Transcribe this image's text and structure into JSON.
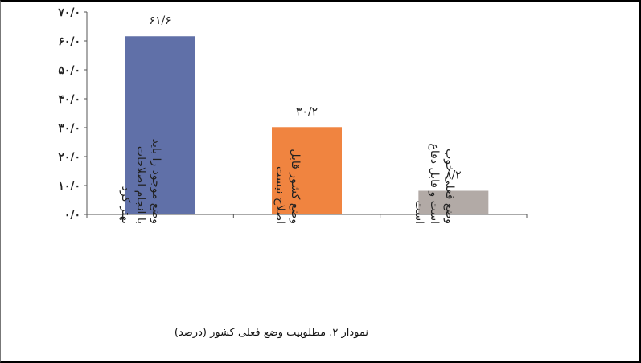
{
  "chart_data": {
    "type": "bar",
    "title": "",
    "xlabel": "",
    "ylabel": "",
    "ylim": [
      0,
      70
    ],
    "yticks": [
      0,
      10,
      20,
      30,
      40,
      50,
      60,
      70
    ],
    "ytick_labels": [
      "۰/۰",
      "۱۰/۰",
      "۲۰/۰",
      "۳۰/۰",
      "۴۰/۰",
      "۵۰/۰",
      "۶۰/۰",
      "۷۰/۰"
    ],
    "categories": [
      [
        "وضع موجود را باید",
        "با انجام اصلاحات",
        "بهتر کرد"
      ],
      [
        "وضع کشور قابل",
        "اصلاح نیست"
      ],
      [
        "وضع فعلی خوب",
        "است و قابل دفاع",
        "است"
      ]
    ],
    "values": [
      61.6,
      30.2,
      8.2
    ],
    "value_labels": [
      "۶۱/۶",
      "۳۰/۲",
      "۸/۲"
    ],
    "colors": [
      "#6070a8",
      "#f08440",
      "#b2aaa6"
    ],
    "grid": false,
    "legend": "none"
  },
  "caption": "نمودار ۲. مطلوبیت وضع فعلی کشور (درصد)"
}
